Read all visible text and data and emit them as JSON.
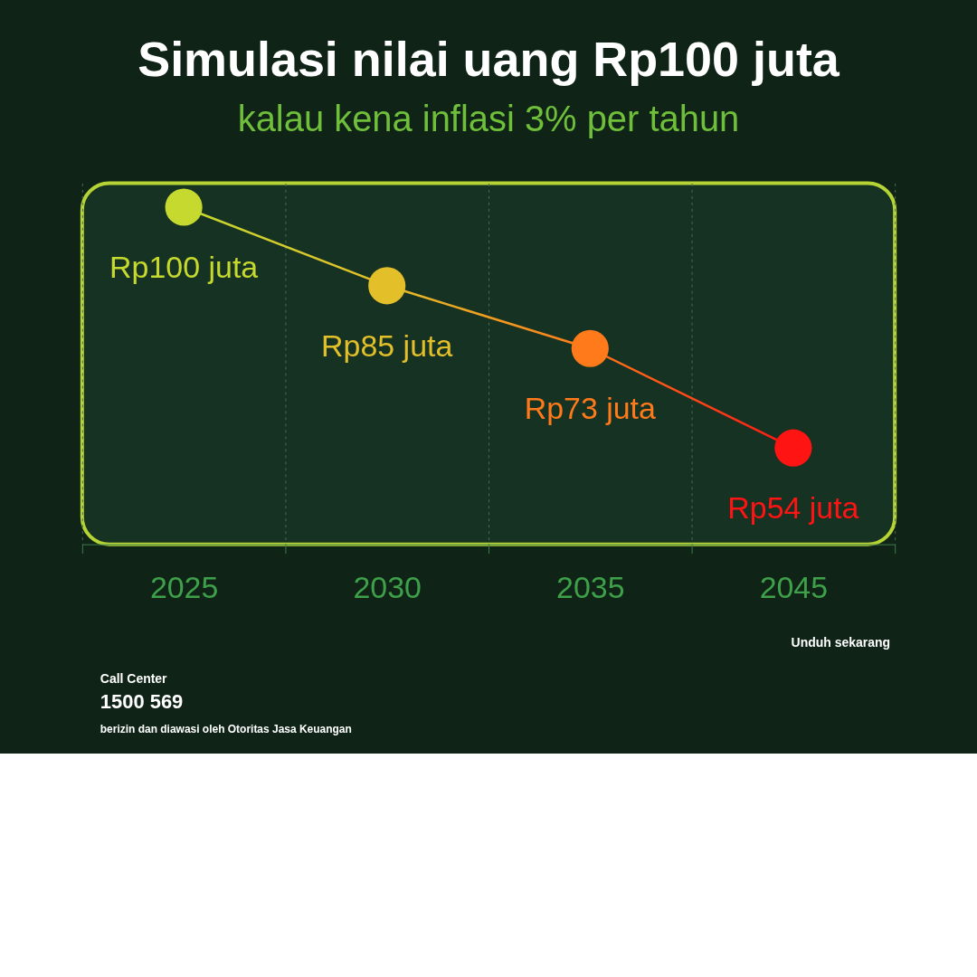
{
  "chart_data": {
    "type": "line",
    "title": "Simulasi nilai uang Rp100 juta",
    "subtitle": "kalau kena inflasi 3% per tahun",
    "categories": [
      "2025",
      "2030",
      "2035",
      "2045"
    ],
    "values": [
      100,
      85,
      73,
      54
    ],
    "value_labels": [
      "Rp100 juta",
      "Rp85 juta",
      "Rp73 juta",
      "Rp54 juta"
    ],
    "colors": [
      "#c5d92e",
      "#e3bf2a",
      "#ff7a1a",
      "#ff1414"
    ],
    "marker": "circle",
    "grid": "x",
    "legend": false,
    "annotations": [
      "Call Center",
      "1500 569",
      "Unduh sekarang",
      "berizin dan diawasi oleh Otoritas Jasa Keuangan"
    ]
  }
}
